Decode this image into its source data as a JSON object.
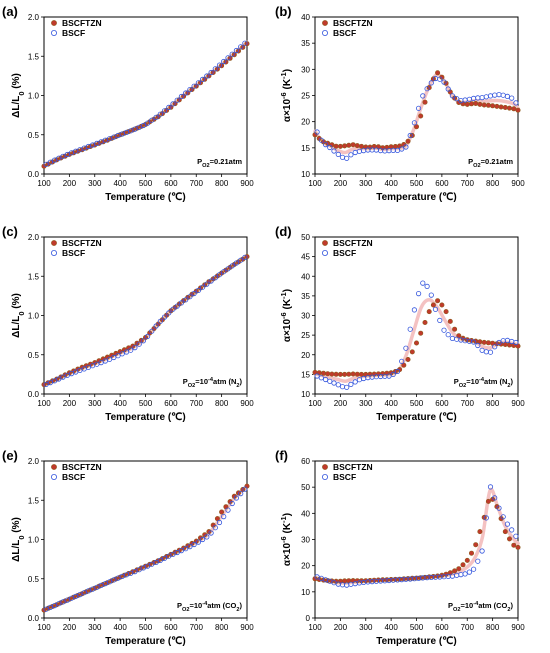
{
  "colors": {
    "bscftzn_fill": "#c0392b",
    "bscftzn_edge": "#8b5a1a",
    "bscf_edge": "#3355dd",
    "fit": "#f4c2c2"
  },
  "chart_data": [
    {
      "panel": "(a)",
      "type": "scatter",
      "xlabel": "Temperature (℃)",
      "ylabel": "ΔL/L0 (%)",
      "xlim": [
        100,
        900
      ],
      "ylim": [
        0.0,
        2.0
      ],
      "xticks": [
        100,
        200,
        300,
        400,
        500,
        600,
        700,
        800,
        900
      ],
      "yticks": [
        0.0,
        0.5,
        1.0,
        1.5,
        2.0
      ],
      "legend": "top-left",
      "annotation": "PO2=0.21atm",
      "series": [
        {
          "name": "BSCFTZN",
          "marker": "filled",
          "x": [
            100,
            150,
            200,
            250,
            300,
            350,
            400,
            450,
            500,
            550,
            600,
            650,
            700,
            750,
            800,
            850,
            900
          ],
          "y": [
            0.1,
            0.18,
            0.25,
            0.31,
            0.37,
            0.43,
            0.5,
            0.56,
            0.63,
            0.73,
            0.85,
            0.99,
            1.12,
            1.25,
            1.38,
            1.52,
            1.66
          ]
        },
        {
          "name": "BSCF",
          "marker": "open",
          "x": [
            100,
            150,
            200,
            250,
            300,
            350,
            400,
            450,
            500,
            550,
            600,
            650,
            700,
            750,
            800,
            850,
            900
          ],
          "y": [
            0.11,
            0.19,
            0.26,
            0.32,
            0.38,
            0.44,
            0.5,
            0.56,
            0.63,
            0.74,
            0.87,
            1.01,
            1.14,
            1.27,
            1.41,
            1.55,
            1.69
          ]
        }
      ]
    },
    {
      "panel": "(b)",
      "type": "scatter",
      "xlabel": "Temperature (℃)",
      "ylabel": "α×10^-6 (K^-1)",
      "xlim": [
        100,
        900
      ],
      "ylim": [
        10,
        40
      ],
      "xticks": [
        100,
        200,
        300,
        400,
        500,
        600,
        700,
        800,
        900
      ],
      "yticks": [
        10,
        15,
        20,
        25,
        30,
        35,
        40
      ],
      "legend": "top-left",
      "annotation": "PO2=0.21atm",
      "series": [
        {
          "name": "BSCFTZN",
          "marker": "filled",
          "x": [
            100,
            130,
            160,
            190,
            220,
            250,
            280,
            310,
            340,
            370,
            400,
            430,
            460,
            490,
            520,
            550,
            580,
            610,
            640,
            670,
            700,
            730,
            760,
            790,
            820,
            850,
            880,
            900
          ],
          "y": [
            17.5,
            16.2,
            15.7,
            15.2,
            15.4,
            15.6,
            15.3,
            15.1,
            15.3,
            15.0,
            15.2,
            15.3,
            15.8,
            17.8,
            21.5,
            26.5,
            29.5,
            28.0,
            25.0,
            23.5,
            23.3,
            23.5,
            23.2,
            23.1,
            22.9,
            22.7,
            22.5,
            22.2
          ]
        },
        {
          "name": "BSCF",
          "marker": "open",
          "x": [
            100,
            130,
            160,
            190,
            220,
            250,
            280,
            310,
            340,
            370,
            400,
            430,
            460,
            490,
            520,
            550,
            580,
            610,
            640,
            670,
            700,
            730,
            760,
            790,
            820,
            850,
            880,
            900
          ],
          "y": [
            18.8,
            16.0,
            15.0,
            13.8,
            12.8,
            14.0,
            14.4,
            14.6,
            14.6,
            14.4,
            14.5,
            14.5,
            15.2,
            19.5,
            24.5,
            27.0,
            28.5,
            27.5,
            25.0,
            24.0,
            24.2,
            24.5,
            24.6,
            24.9,
            25.2,
            25.0,
            24.4,
            23.0
          ]
        }
      ]
    },
    {
      "panel": "(c)",
      "type": "scatter",
      "xlabel": "Temperature (℃)",
      "ylabel": "ΔL/L0 (%)",
      "xlim": [
        100,
        900
      ],
      "ylim": [
        0.0,
        2.0
      ],
      "xticks": [
        100,
        200,
        300,
        400,
        500,
        600,
        700,
        800,
        900
      ],
      "yticks": [
        0.0,
        0.5,
        1.0,
        1.5,
        2.0
      ],
      "legend": "top-left",
      "annotation": "PO2=10^-4atm (N2)",
      "series": [
        {
          "name": "BSCFTZN",
          "marker": "filled",
          "x": [
            100,
            150,
            200,
            250,
            300,
            350,
            400,
            450,
            500,
            550,
            600,
            650,
            700,
            750,
            800,
            850,
            900
          ],
          "y": [
            0.12,
            0.19,
            0.27,
            0.34,
            0.4,
            0.47,
            0.54,
            0.61,
            0.72,
            0.89,
            1.06,
            1.19,
            1.31,
            1.43,
            1.54,
            1.65,
            1.75
          ]
        },
        {
          "name": "BSCF",
          "marker": "open",
          "x": [
            100,
            150,
            200,
            250,
            300,
            350,
            400,
            450,
            500,
            550,
            600,
            650,
            700,
            750,
            800,
            850,
            900
          ],
          "y": [
            0.11,
            0.18,
            0.25,
            0.31,
            0.37,
            0.43,
            0.5,
            0.57,
            0.7,
            0.9,
            1.06,
            1.18,
            1.3,
            1.42,
            1.54,
            1.65,
            1.76
          ]
        }
      ]
    },
    {
      "panel": "(d)",
      "type": "scatter",
      "xlabel": "Temperature (℃)",
      "ylabel": "α×10^-6 (K^-1)",
      "xlim": [
        100,
        900
      ],
      "ylim": [
        10,
        50
      ],
      "xticks": [
        100,
        200,
        300,
        400,
        500,
        600,
        700,
        800,
        900
      ],
      "yticks": [
        10,
        15,
        20,
        25,
        30,
        35,
        40,
        45,
        50
      ],
      "legend": "top-left",
      "annotation": "PO2=10^-4atm (N2)",
      "series": [
        {
          "name": "BSCFTZN",
          "marker": "filled",
          "x": [
            100,
            130,
            160,
            190,
            220,
            250,
            280,
            310,
            340,
            370,
            400,
            430,
            460,
            490,
            520,
            550,
            580,
            610,
            640,
            670,
            700,
            730,
            760,
            790,
            820,
            850,
            880,
            900
          ],
          "y": [
            15.5,
            15.3,
            15.1,
            15.0,
            15.0,
            15.1,
            15.0,
            15.0,
            15.1,
            15.2,
            15.4,
            16.0,
            18.0,
            21.5,
            26.0,
            31.0,
            34.0,
            32.0,
            27.5,
            24.5,
            23.8,
            23.5,
            23.2,
            23.0,
            22.8,
            22.6,
            22.4,
            22.2
          ]
        },
        {
          "name": "BSCF",
          "marker": "open",
          "x": [
            100,
            130,
            160,
            190,
            220,
            250,
            280,
            310,
            340,
            370,
            400,
            430,
            460,
            490,
            520,
            550,
            580,
            610,
            640,
            670,
            700,
            730,
            760,
            790,
            820,
            850,
            880,
            900
          ],
          "y": [
            14.8,
            14.0,
            13.2,
            12.4,
            11.5,
            12.8,
            13.8,
            14.2,
            14.4,
            14.5,
            14.6,
            16.0,
            22.0,
            31.0,
            38.5,
            37.0,
            30.5,
            26.0,
            24.2,
            23.8,
            23.5,
            23.2,
            21.0,
            20.5,
            23.0,
            23.8,
            23.3,
            23.0
          ]
        }
      ]
    },
    {
      "panel": "(e)",
      "type": "scatter",
      "xlabel": "Temperature (℃)",
      "ylabel": "ΔL/L0 (%)",
      "xlim": [
        100,
        900
      ],
      "ylim": [
        0.0,
        2.0
      ],
      "xticks": [
        100,
        200,
        300,
        400,
        500,
        600,
        700,
        800,
        900
      ],
      "yticks": [
        0.0,
        0.5,
        1.0,
        1.5,
        2.0
      ],
      "legend": "top-left",
      "annotation": "PO2=10^-4atm (CO2)",
      "series": [
        {
          "name": "BSCFTZN",
          "marker": "filled",
          "x": [
            100,
            150,
            200,
            250,
            300,
            350,
            400,
            450,
            500,
            550,
            600,
            650,
            700,
            750,
            800,
            850,
            900
          ],
          "y": [
            0.1,
            0.17,
            0.24,
            0.31,
            0.38,
            0.45,
            0.52,
            0.59,
            0.66,
            0.73,
            0.81,
            0.89,
            0.98,
            1.1,
            1.35,
            1.55,
            1.68
          ]
        },
        {
          "name": "BSCF",
          "marker": "open",
          "x": [
            100,
            150,
            200,
            250,
            300,
            350,
            400,
            450,
            500,
            550,
            600,
            650,
            700,
            750,
            800,
            850,
            900
          ],
          "y": [
            0.1,
            0.17,
            0.24,
            0.31,
            0.38,
            0.45,
            0.52,
            0.58,
            0.65,
            0.72,
            0.8,
            0.87,
            0.95,
            1.05,
            1.25,
            1.5,
            1.67
          ]
        }
      ]
    },
    {
      "panel": "(f)",
      "type": "scatter",
      "xlabel": "Temperature (℃)",
      "ylabel": "α×10^-6 (K^-1)",
      "xlim": [
        100,
        900
      ],
      "ylim": [
        0,
        60
      ],
      "xticks": [
        100,
        200,
        300,
        400,
        500,
        600,
        700,
        800,
        900
      ],
      "yticks": [
        0,
        10,
        20,
        30,
        40,
        50,
        60
      ],
      "legend": "top-left",
      "annotation": "PO2=10^-4atm (CO2)",
      "series": [
        {
          "name": "BSCFTZN",
          "marker": "filled",
          "x": [
            100,
            130,
            160,
            190,
            220,
            250,
            280,
            310,
            340,
            370,
            400,
            430,
            460,
            490,
            520,
            550,
            580,
            610,
            640,
            670,
            700,
            730,
            760,
            790,
            820,
            850,
            880,
            900
          ],
          "y": [
            15.0,
            14.5,
            14.2,
            14.0,
            14.2,
            14.3,
            14.2,
            14.3,
            14.5,
            14.6,
            14.7,
            14.8,
            15.0,
            15.2,
            15.4,
            15.7,
            16.0,
            16.5,
            17.5,
            19.0,
            22.0,
            27.0,
            36.0,
            47.0,
            42.0,
            33.0,
            28.0,
            27.0
          ]
        },
        {
          "name": "BSCF",
          "marker": "open",
          "x": [
            100,
            130,
            160,
            190,
            220,
            250,
            280,
            310,
            340,
            370,
            400,
            430,
            460,
            490,
            520,
            550,
            580,
            610,
            640,
            670,
            700,
            730,
            760,
            790,
            820,
            850,
            880,
            900
          ],
          "y": [
            16.0,
            15.0,
            14.0,
            13.0,
            12.5,
            13.0,
            13.5,
            13.8,
            14.0,
            14.2,
            14.4,
            14.6,
            14.8,
            15.0,
            15.3,
            15.5,
            15.6,
            15.8,
            16.0,
            16.5,
            17.0,
            19.0,
            26.0,
            50.5,
            43.0,
            37.0,
            33.0,
            30.0
          ]
        }
      ]
    }
  ]
}
